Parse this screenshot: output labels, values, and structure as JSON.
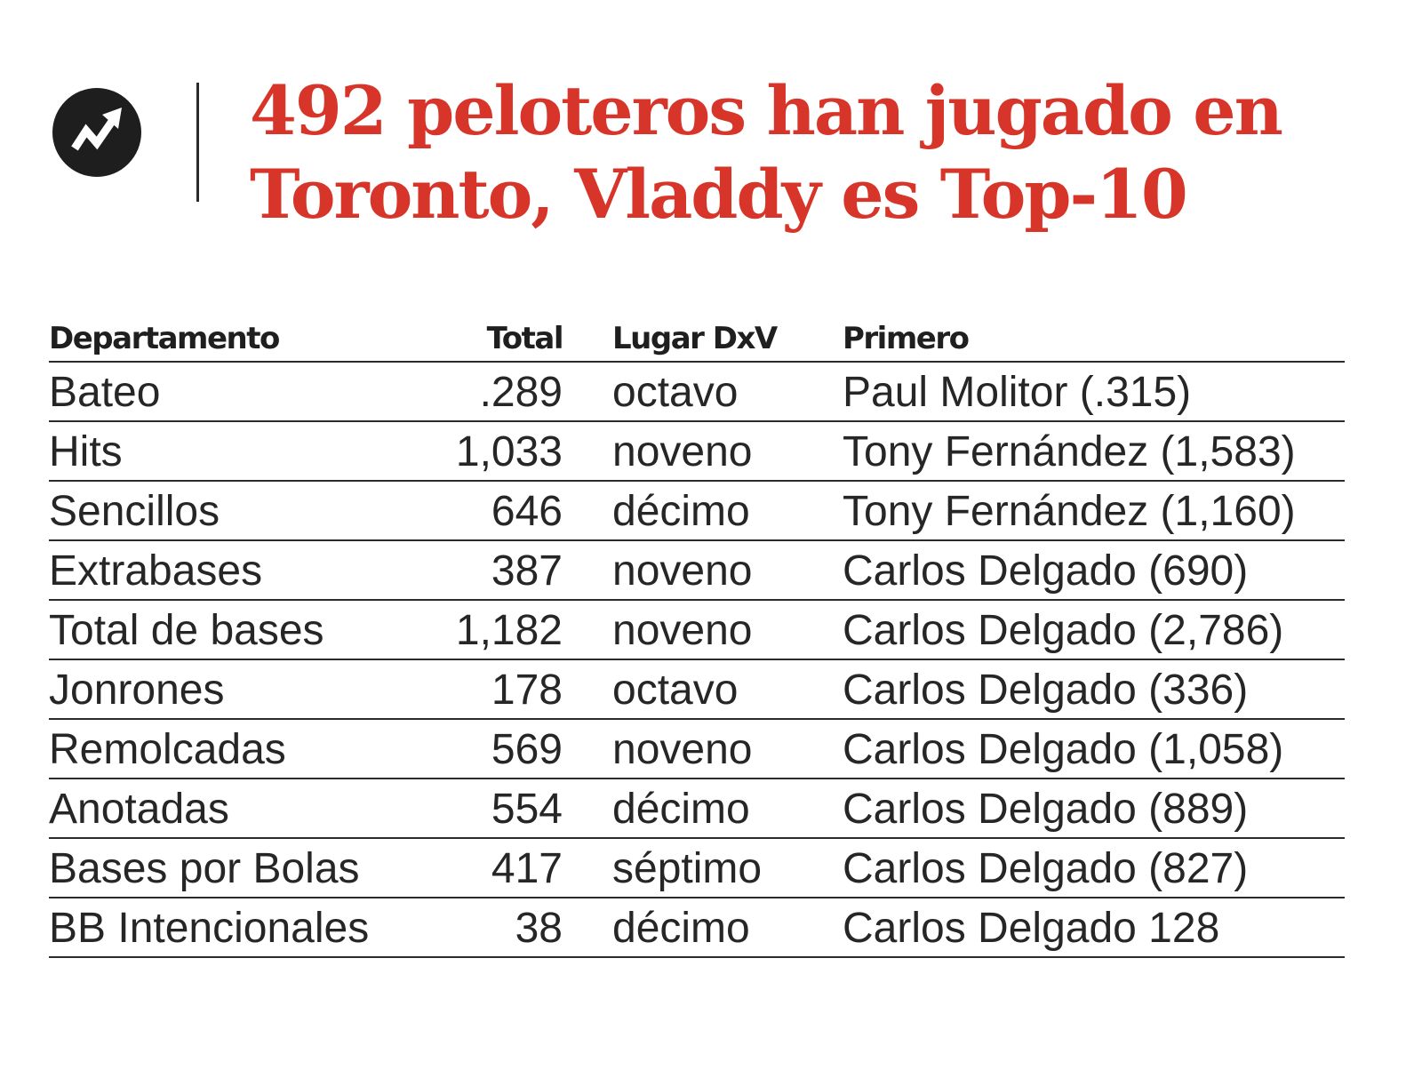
{
  "headline": {
    "line1": "492 peloteros han jugado en",
    "line2": "Toronto, Vladdy es Top-10"
  },
  "logo": {
    "icon": "trending-arrow-icon",
    "colors": {
      "background": "#1e1e1e",
      "foreground": "#ffffff"
    }
  },
  "colors": {
    "accent": "#d8352a",
    "text": "#262626",
    "rule": "#2b2b2b"
  },
  "table": {
    "headers": {
      "departamento": "Departamento",
      "total": "Total",
      "lugar": "Lugar DxV",
      "primero": "Primero"
    },
    "rows": [
      {
        "departamento": "Bateo",
        "total": ".289",
        "lugar": "octavo",
        "primero": "Paul Molitor (.315)"
      },
      {
        "departamento": "Hits",
        "total": "1,033",
        "lugar": "noveno",
        "primero": "Tony Fernández (1,583)"
      },
      {
        "departamento": "Sencillos",
        "total": "646",
        "lugar": "décimo",
        "primero": "Tony Fernández (1,160)"
      },
      {
        "departamento": "Extrabases",
        "total": "387",
        "lugar": "noveno",
        "primero": "Carlos Delgado (690)"
      },
      {
        "departamento": "Total de bases",
        "total": "1,182",
        "lugar": "noveno",
        "primero": "Carlos Delgado (2,786)"
      },
      {
        "departamento": "Jonrones",
        "total": "178",
        "lugar": "octavo",
        "primero": "Carlos Delgado (336)"
      },
      {
        "departamento": "Remolcadas",
        "total": "569",
        "lugar": "noveno",
        "primero": "Carlos Delgado (1,058)"
      },
      {
        "departamento": "Anotadas",
        "total": "554",
        "lugar": "décimo",
        "primero": "Carlos Delgado (889)"
      },
      {
        "departamento": "Bases por Bolas",
        "total": "417",
        "lugar": "séptimo",
        "primero": "Carlos Delgado (827)"
      },
      {
        "departamento": "BB Intencionales",
        "total": "38",
        "lugar": "décimo",
        "primero": "Carlos Delgado 128"
      }
    ]
  }
}
